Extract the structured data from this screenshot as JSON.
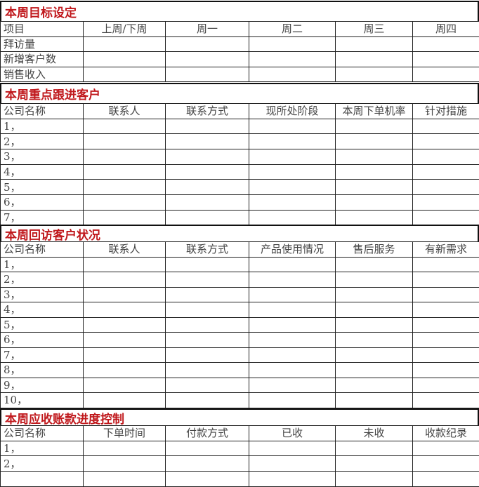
{
  "sections": [
    {
      "title": "本周目标设定",
      "headers": [
        "项目",
        "上周/下周",
        "周一",
        "周二",
        "周三",
        "周四"
      ],
      "rows": [
        "拜访量",
        "新增客户数",
        "销售收入"
      ]
    },
    {
      "title": "本周重点跟进客户",
      "headers": [
        "公司名称",
        "联系人",
        "联系方式",
        "现所处阶段",
        "本周下单机率",
        "针对措施"
      ],
      "rows": [
        "1，",
        "2，",
        "3，",
        "4，",
        "5，",
        "6，",
        "7，"
      ]
    },
    {
      "title": "本周回访客户状况",
      "headers": [
        "公司名称",
        "联系人",
        "联系方式",
        "产品使用情况",
        "售后服务",
        "有新需求"
      ],
      "rows": [
        "1，",
        "2，",
        "3，",
        "4，",
        "5，",
        "6，",
        "7，",
        "8，",
        "9，",
        "10，"
      ]
    },
    {
      "title": "本周应收账款进度控制",
      "headers": [
        "公司名称",
        "下单时间",
        "付款方式",
        "已收",
        "未收",
        "收款纪录"
      ],
      "rows": [
        "1，",
        "2，",
        ""
      ]
    }
  ],
  "colors": {
    "title": "#c0181c",
    "border": "#222222"
  }
}
